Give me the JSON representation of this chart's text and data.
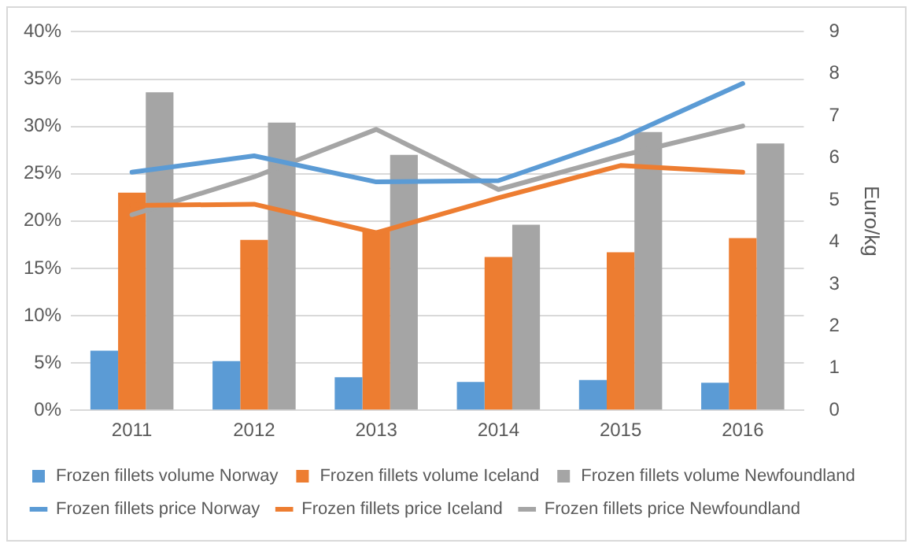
{
  "chart_data": {
    "type": "bar",
    "categories": [
      "2011",
      "2012",
      "2013",
      "2014",
      "2015",
      "2016"
    ],
    "ylim": [
      0,
      40
    ],
    "yticks": [
      {
        "value": 0,
        "label": "0%"
      },
      {
        "value": 5,
        "label": "5%"
      },
      {
        "value": 10,
        "label": "10%"
      },
      {
        "value": 15,
        "label": "15%"
      },
      {
        "value": 20,
        "label": "20%"
      },
      {
        "value": 25,
        "label": "25%"
      },
      {
        "value": 30,
        "label": "30%"
      },
      {
        "value": 35,
        "label": "35%"
      },
      {
        "value": 40,
        "label": "40%"
      }
    ],
    "y2lim": [
      0,
      9
    ],
    "y2ticks": [
      0,
      1,
      2,
      3,
      4,
      5,
      6,
      7,
      8,
      9
    ],
    "y2label": "Euro/kg",
    "grid": "y",
    "legend": "bottom",
    "series": [
      {
        "name": "Frozen fillets volume Norway",
        "color": "#5b9bd5",
        "values": [
          6.3,
          5.2,
          3.5,
          3.0,
          3.2,
          2.9
        ]
      },
      {
        "name": "Frozen fillets volume Iceland",
        "color": "#ed7d31",
        "values": [
          23.0,
          18.0,
          18.9,
          16.2,
          16.7,
          18.2
        ]
      },
      {
        "name": "Frozen fillets volume Newfoundland",
        "color": "#a5a5a5",
        "values": [
          33.6,
          30.4,
          27.0,
          19.6,
          29.4,
          28.2
        ]
      },
      {
        "name": "Frozen fillets price Norway",
        "type": "line",
        "axis": "y2",
        "color": "#5b9bd5",
        "values": [
          5.66,
          6.05,
          5.43,
          5.46,
          6.46,
          7.77
        ]
      },
      {
        "name": "Frozen fillets price Iceland",
        "type": "line",
        "axis": "y2",
        "color": "#ed7d31",
        "values": [
          4.87,
          4.9,
          4.22,
          5.05,
          5.82,
          5.66
        ]
      },
      {
        "name": "Frozen fillets price Newfoundland",
        "type": "line",
        "axis": "y2",
        "color": "#a5a5a5",
        "values": [
          4.65,
          5.55,
          6.68,
          5.25,
          6.05,
          6.76
        ]
      }
    ]
  }
}
